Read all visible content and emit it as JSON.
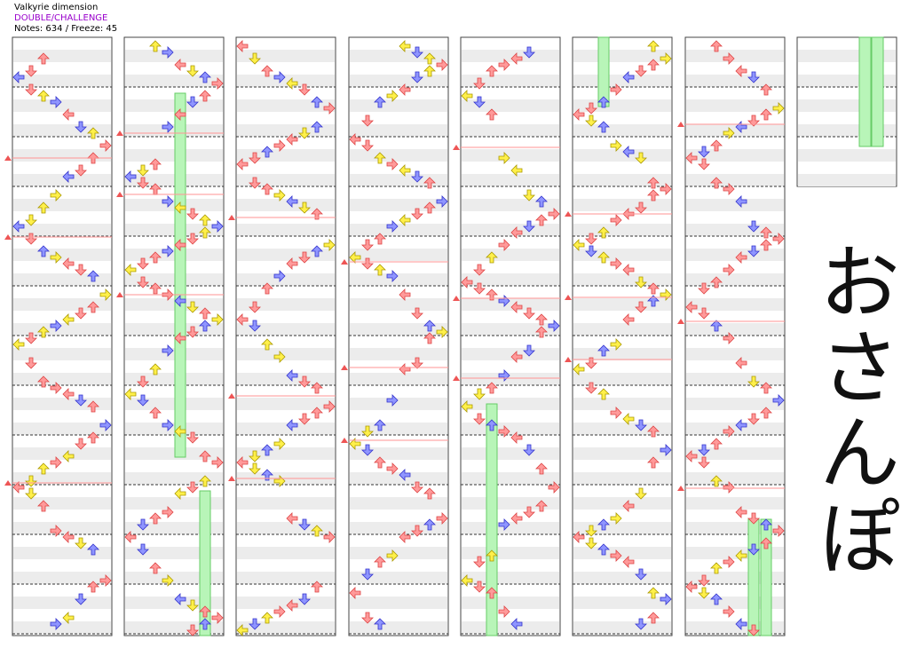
{
  "header": {
    "title": "Valkyrie dimension",
    "difficulty": "DOUBLE/CHALLENGE",
    "stats": "Notes: 634 / Freeze: 45"
  },
  "handwriting": "おさんぽ"
}
